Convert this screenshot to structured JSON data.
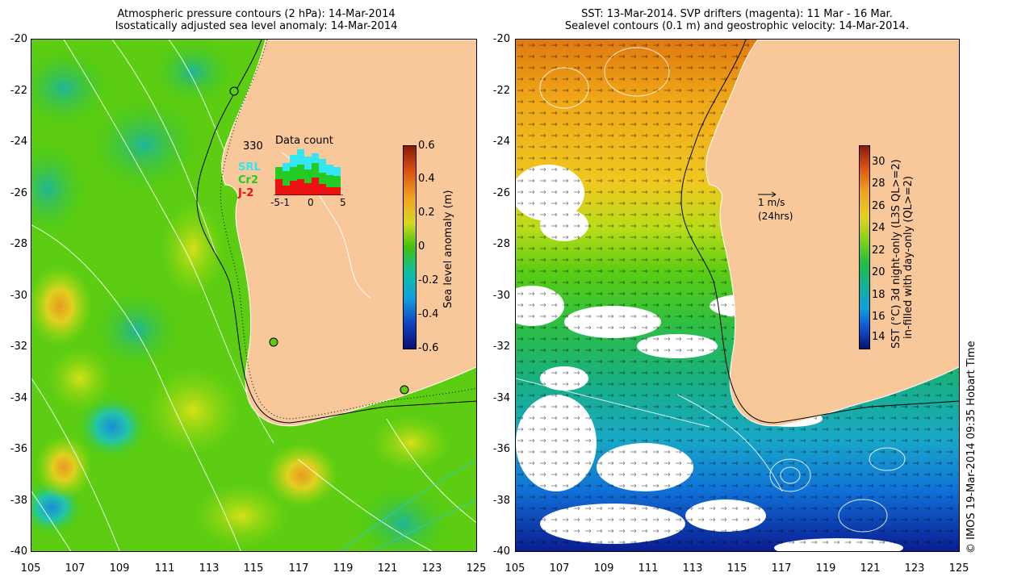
{
  "left_panel": {
    "title_line1": "Atmospheric pressure contours (2 hPa): 14-Mar-2014",
    "title_line2": "Isostatically adjusted sea level anomaly: 14-Mar-2014",
    "y_ticks": [
      "-20",
      "-22",
      "-24",
      "-26",
      "-28",
      "-30",
      "-32",
      "-34",
      "-36",
      "-38",
      "-40"
    ],
    "x_ticks": [
      "105",
      "107",
      "109",
      "111",
      "113",
      "115",
      "117",
      "119",
      "121",
      "123",
      "125"
    ],
    "colorbar": {
      "label": "Sea level anomaly (m)",
      "ticks": [
        "0.6",
        "0.4",
        "0.2",
        "0",
        "-0.2",
        "-0.4",
        "-0.6"
      ]
    },
    "inset": {
      "title": "Data count",
      "max_label": "330",
      "x_ticks": [
        "-5",
        "-1",
        "0",
        "5"
      ],
      "legend": [
        {
          "label": "SRL",
          "color": "#33e6f2"
        },
        {
          "label": "Cr2",
          "color": "#22cc22"
        },
        {
          "label": "J-2",
          "color": "#ee1111"
        }
      ]
    }
  },
  "right_panel": {
    "title_line1": "SST: 13-Mar-2014. SVP drifters (magenta): 11 Mar - 16 Mar.",
    "title_line2": "Sealevel contours (0.1 m) and geostrophic velocity: 14-Mar-2014.",
    "y_ticks": [
      "-20",
      "-22",
      "-24",
      "-26",
      "-28",
      "-30",
      "-32",
      "-34",
      "-36",
      "-38",
      "-40"
    ],
    "x_ticks": [
      "105",
      "107",
      "109",
      "111",
      "113",
      "115",
      "117",
      "119",
      "121",
      "123",
      "125"
    ],
    "scale_label": "1 m/s",
    "scale_sub": "(24hrs)",
    "colorbar": {
      "label_line1": "SST (°C) 3d night-only (L3S QL>=2)",
      "label_line2": "in-filled with day-only (QL>=2)",
      "ticks": [
        "30",
        "28",
        "26",
        "24",
        "22",
        "20",
        "18",
        "16",
        "14"
      ]
    }
  },
  "credit": "© IMOS 19-Mar-2014 09:35 Hobart Time",
  "colors": {
    "land": "#f8c89a",
    "sla_neutral": "#44cc11",
    "sst_warm": "#e8a010"
  }
}
